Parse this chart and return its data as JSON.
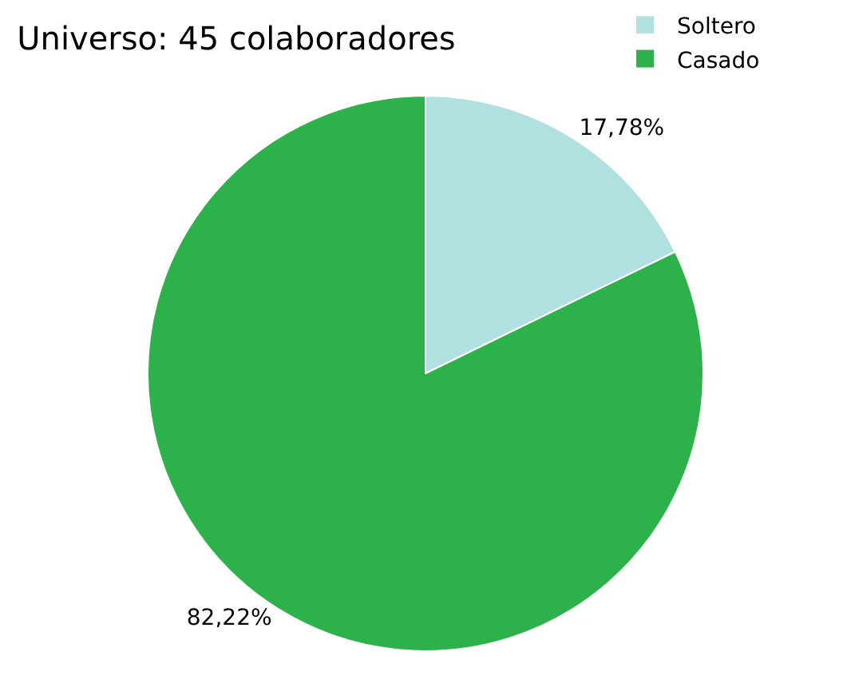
{
  "chart_data": {
    "type": "pie",
    "title": "Universo: 45 colaboradores",
    "categories": [
      "Soltero",
      "Casado"
    ],
    "values": [
      17.78,
      82.22
    ],
    "colors": [
      "#b0e0e0",
      "#2db14a"
    ],
    "value_labels": [
      "17,78%",
      "82,22%"
    ],
    "legend": "top right"
  }
}
